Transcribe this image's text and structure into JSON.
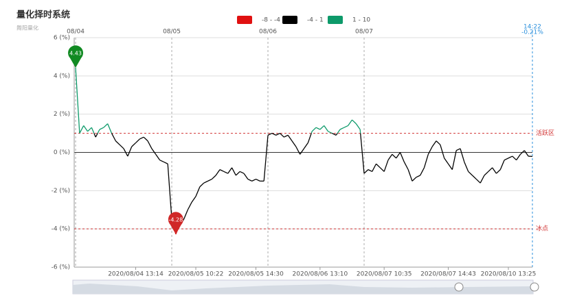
{
  "chart_data": {
    "type": "line",
    "title": "量化择时系统",
    "subtitle": "舞阳量化",
    "pieces": [
      {
        "min": -8,
        "max": -4,
        "label": "-8 - -4",
        "color": "#e01010"
      },
      {
        "min": -4,
        "max": 1,
        "label": "-4 - 1",
        "color": "#000000"
      },
      {
        "min": 1,
        "max": 10,
        "label": "1 - 10",
        "color": "#0d9a6a"
      }
    ],
    "values": [
      4.43,
      1.0,
      1.4,
      1.1,
      1.3,
      0.8,
      1.2,
      1.3,
      1.5,
      1.0,
      0.6,
      0.4,
      0.2,
      -0.2,
      0.3,
      0.5,
      0.7,
      0.8,
      0.6,
      0.2,
      -0.1,
      -0.4,
      -0.5,
      -0.6,
      -3.5,
      -4.28,
      -3.8,
      -3.5,
      -3.0,
      -2.6,
      -2.3,
      -1.8,
      -1.6,
      -1.5,
      -1.4,
      -1.2,
      -0.9,
      -1.0,
      -1.1,
      -0.8,
      -1.2,
      -1.0,
      -1.1,
      -1.4,
      -1.5,
      -1.4,
      -1.5,
      -1.5,
      0.9,
      1.0,
      0.9,
      1.0,
      0.8,
      0.9,
      0.6,
      0.3,
      -0.1,
      0.2,
      0.5,
      1.1,
      1.3,
      1.2,
      1.4,
      1.1,
      1.0,
      0.9,
      1.2,
      1.3,
      1.4,
      1.7,
      1.5,
      1.2,
      -1.1,
      -0.9,
      -1.0,
      -0.6,
      -0.8,
      -1.0,
      -0.4,
      -0.1,
      -0.3,
      0.0,
      -0.5,
      -0.9,
      -1.5,
      -1.3,
      -1.2,
      -0.8,
      -0.1,
      0.3,
      0.6,
      0.4,
      -0.3,
      -0.6,
      -0.9,
      0.1,
      0.2,
      -0.5,
      -1.0,
      -1.2,
      -1.4,
      -1.6,
      -1.2,
      -1.0,
      -0.8,
      -1.1,
      -0.9,
      -0.4,
      -0.3,
      -0.2,
      -0.4,
      -0.1,
      0.1,
      -0.2,
      -0.21
    ],
    "xlim": [
      -0.35,
      114
    ],
    "ylim": [
      -6,
      6
    ],
    "yticks": [
      {
        "value": -6,
        "label": "-6 (%)"
      },
      {
        "value": -4,
        "label": "-4 (%)"
      },
      {
        "value": -2,
        "label": "-2 (%)"
      },
      {
        "value": 0,
        "label": "0 (%)"
      },
      {
        "value": 2,
        "label": "2 (%)"
      },
      {
        "value": 4,
        "label": "4 (%)"
      },
      {
        "value": 6,
        "label": "6 (%)"
      }
    ],
    "xticks": [
      {
        "value": 15,
        "label": "2020/08/04 13:14"
      },
      {
        "value": 30,
        "label": "2020/08/05 10:22"
      },
      {
        "value": 45,
        "label": "2020/08/05 14:30"
      },
      {
        "value": 61,
        "label": "2020/08/06 13:10"
      },
      {
        "value": 77,
        "label": "2020/08/07 10:35"
      },
      {
        "value": 93,
        "label": "2020/08/07 14:43"
      },
      {
        "value": 108,
        "label": "2020/08/10 13:25"
      }
    ],
    "day_lines": [
      {
        "value": 0,
        "label": "08/04"
      },
      {
        "value": 24,
        "label": "08/05"
      },
      {
        "value": 48,
        "label": "08/06"
      },
      {
        "value": 72,
        "label": "08/07"
      }
    ],
    "last_point": {
      "value": 114,
      "label": "14:22",
      "change": "-0.21%",
      "color": "#2a8fdc"
    },
    "mark_lines": [
      {
        "value": 1,
        "label": "活跃区",
        "color": "#d03030"
      },
      {
        "value": -4,
        "label": "冰点",
        "color": "#d03030"
      }
    ],
    "mark_points": [
      {
        "x": 0,
        "value": 4.43,
        "color": "#118a22"
      },
      {
        "x": 25,
        "value": -4.28,
        "color": "#d02828"
      }
    ],
    "grid": true
  }
}
